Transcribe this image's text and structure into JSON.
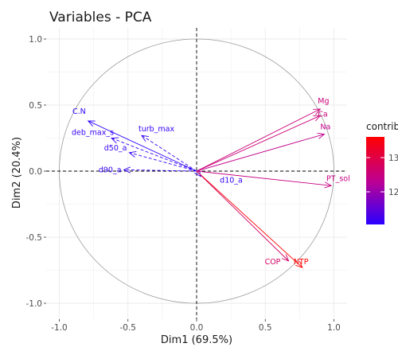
{
  "chart_data": {
    "type": "scatter",
    "title": "Variables - PCA",
    "xlabel": "Dim1 (69.5%)",
    "ylabel": "Dim2 (20.4%)",
    "xlim": [
      -1.1,
      1.1
    ],
    "ylim": [
      -1.05,
      1.05
    ],
    "x_ticks": [
      "-1.0",
      "-0.5",
      "0.0",
      "0.5",
      "1.0"
    ],
    "y_ticks": [
      "1.0",
      "0.5",
      "0.0",
      "-0.5",
      "-1.0"
    ],
    "grid": true,
    "legend_title": "contrib",
    "legend_ticks": [
      "13",
      "12"
    ],
    "colors": {
      "low": "#2a00ff",
      "mid": "#bf0090",
      "high": "#ff0000",
      "circle": "#9a9a9a"
    },
    "variables": [
      {
        "name": "C.N",
        "x": -0.79,
        "y": 0.38,
        "contrib": 10.9,
        "style": "solid"
      },
      {
        "name": "deb_max_s",
        "x": -0.62,
        "y": 0.25,
        "contrib": 11.0,
        "style": "dashed"
      },
      {
        "name": "turb_max",
        "x": -0.4,
        "y": 0.27,
        "contrib": 11.0,
        "style": "dashed"
      },
      {
        "name": "d50_a",
        "x": -0.49,
        "y": 0.14,
        "contrib": 11.0,
        "style": "dashed"
      },
      {
        "name": "d90_a",
        "x": -0.53,
        "y": 0.01,
        "contrib": 11.0,
        "style": "dashed"
      },
      {
        "name": "d10_a",
        "x": 0.03,
        "y": -0.04,
        "contrib": 11.0,
        "style": "dashed"
      },
      {
        "name": "Mg",
        "x": 0.9,
        "y": 0.47,
        "contrib": 12.6,
        "style": "solid"
      },
      {
        "name": "Ca",
        "x": 0.9,
        "y": 0.42,
        "contrib": 12.6,
        "style": "solid"
      },
      {
        "name": "Na",
        "x": 0.93,
        "y": 0.28,
        "contrib": 12.4,
        "style": "solid"
      },
      {
        "name": "PT_sol",
        "x": 0.98,
        "y": -0.11,
        "contrib": 12.5,
        "style": "solid"
      },
      {
        "name": "NTP",
        "x": 0.77,
        "y": -0.73,
        "contrib": 13.8,
        "style": "solid"
      },
      {
        "name": "COP",
        "x": 0.67,
        "y": -0.68,
        "contrib": 12.8,
        "style": "solid"
      }
    ]
  }
}
